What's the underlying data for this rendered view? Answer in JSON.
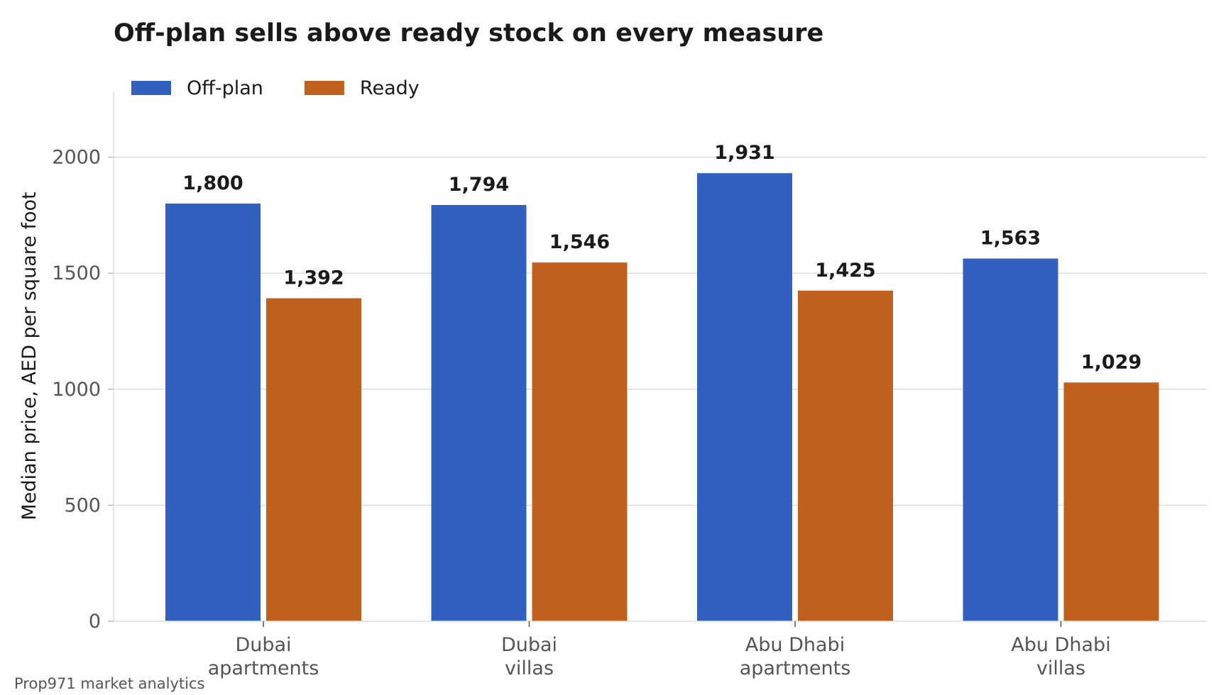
{
  "chart_data": {
    "type": "bar",
    "title": "Off-plan sells above ready stock on every measure",
    "ylabel": "Median price, AED per square foot",
    "xlabel": "",
    "categories": [
      [
        "Dubai",
        "apartments"
      ],
      [
        "Dubai",
        "villas"
      ],
      [
        "Abu Dhabi",
        "apartments"
      ],
      [
        "Abu Dhabi",
        "villas"
      ]
    ],
    "series": [
      {
        "name": "Off-plan",
        "color": "#3160C0",
        "values": [
          1800,
          1794,
          1931,
          1563
        ],
        "labels": [
          "1,800",
          "1,794",
          "1,931",
          "1,563"
        ]
      },
      {
        "name": "Ready",
        "color": "#C0601F",
        "values": [
          1392,
          1546,
          1425,
          1029
        ],
        "labels": [
          "1,392",
          "1,546",
          "1,425",
          "1,029"
        ]
      }
    ],
    "ylim": [
      0,
      2280
    ],
    "yticks": [
      0,
      500,
      1000,
      1500,
      2000
    ],
    "grid": true,
    "legend_position": "top-left",
    "source": "Prop971 market analytics"
  }
}
